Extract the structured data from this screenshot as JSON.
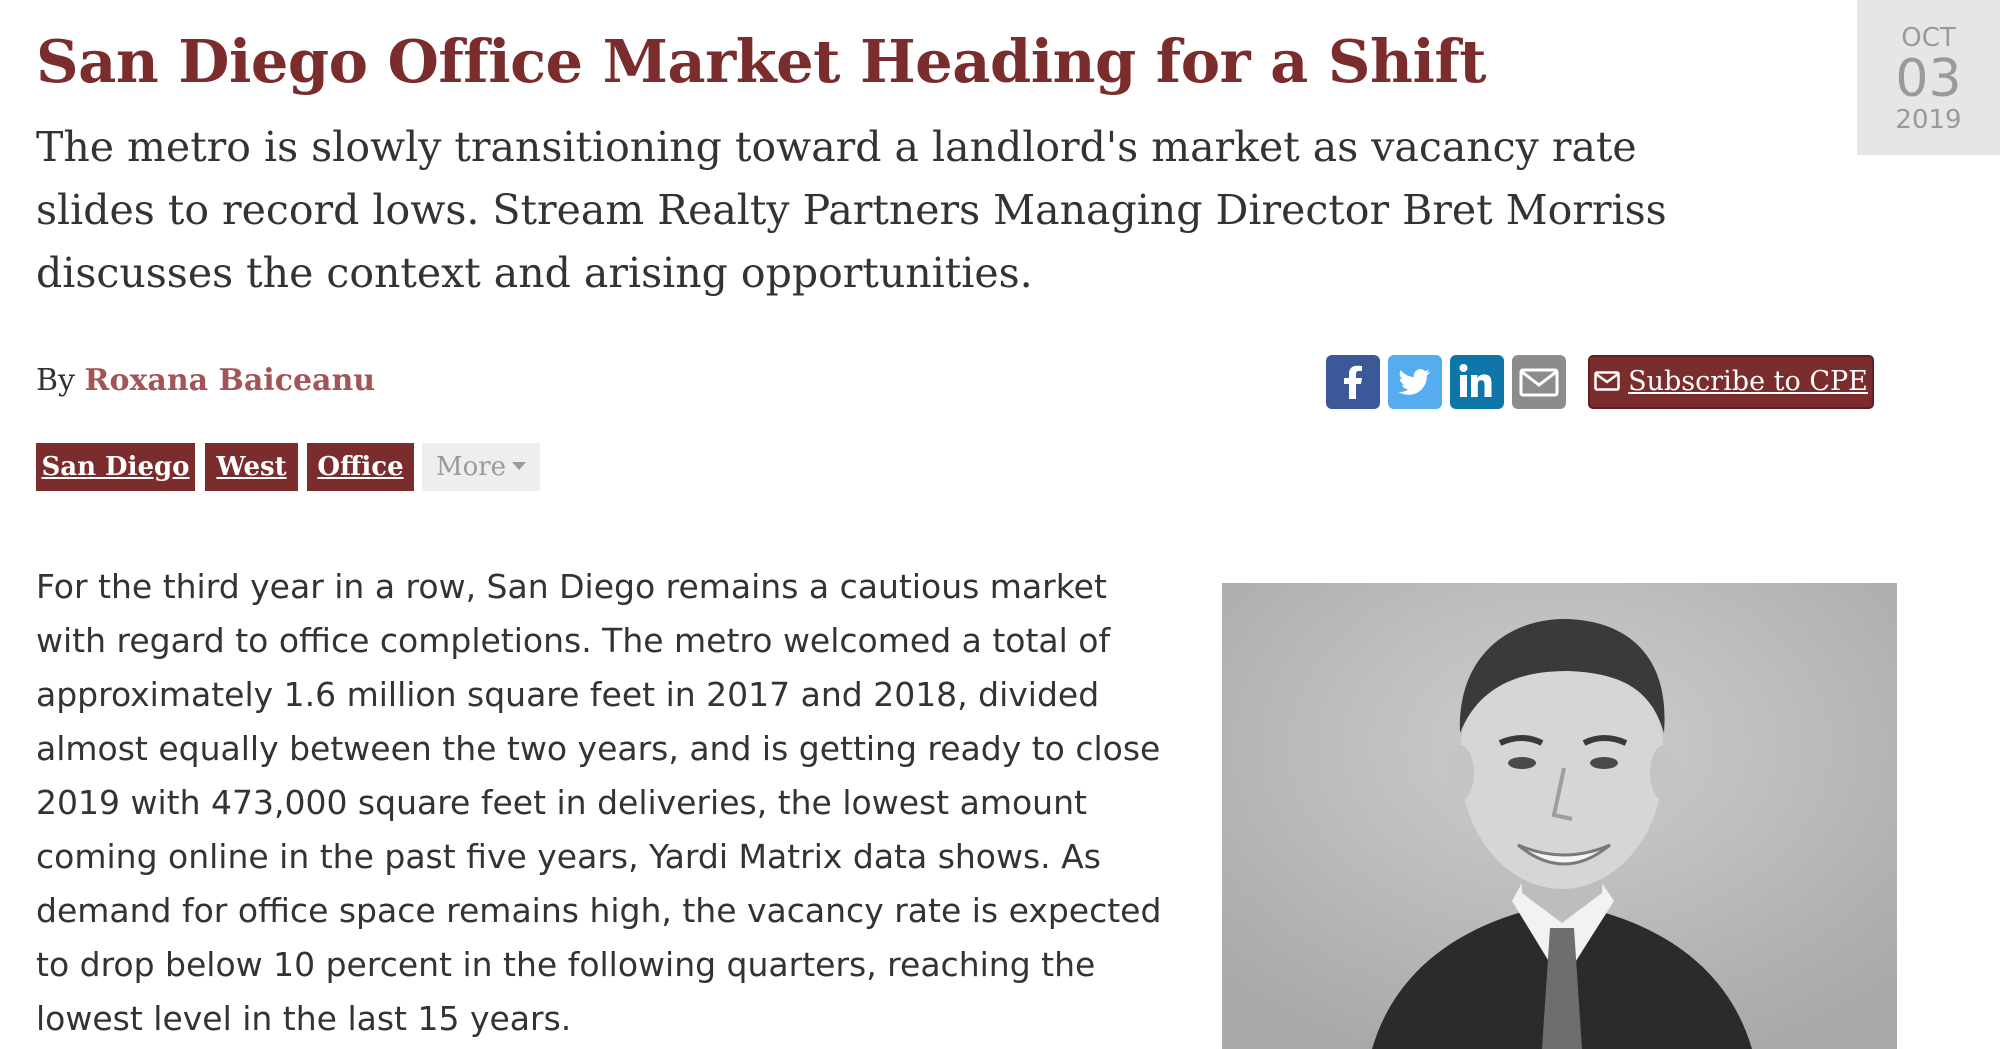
{
  "article": {
    "title": "San Diego Office Market Heading for a Shift",
    "subtitle": "The metro is slowly transitioning toward a landlord's market as vacancy rate slides to record lows. Stream Realty Partners Managing Director Bret Morriss discusses the context and arising opportunities.",
    "date": {
      "month": "OCT",
      "day": "03",
      "year": "2019"
    },
    "byline_prefix": "By",
    "author": "Roxana Baiceanu",
    "body": "For the third year in a row, San Diego remains a cautious market with regard to office completions. The metro welcomed a total of approximately 1.6 million square feet in 2017 and 2018, divided almost equally between the two years, and is getting ready to close 2019 with 473,000 square feet in deliveries, the lowest amount coming online in the past five years, Yardi Matrix data shows. As demand for office space remains high, the vacancy rate is expected to drop below 10 percent in the following quarters, reaching the lowest level in the last 15 years."
  },
  "share": {
    "icons": [
      "facebook-icon",
      "twitter-icon",
      "linkedin-icon",
      "envelope-icon"
    ],
    "subscribe_label": "Subscribe to CPE"
  },
  "tags": {
    "items": [
      "San Diego",
      "West",
      "Office"
    ],
    "more_label": "More"
  },
  "colors": {
    "brand": "#7b2d2e",
    "author": "#a35457",
    "date_box": "#e6e6e6",
    "facebook": "#3b5998",
    "twitter": "#55acee",
    "linkedin": "#0e76a8",
    "email": "#8c8c8c"
  }
}
